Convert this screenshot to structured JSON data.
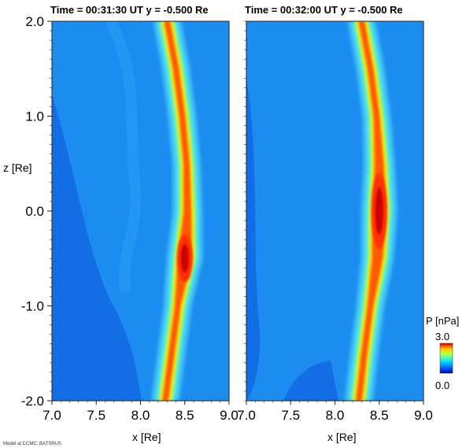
{
  "chart_data": [
    {
      "type": "heatmap",
      "title": "Time = 00:31:30 UT  y = -0.500 Re",
      "xlabel": "x [Re]",
      "ylabel": "z [Re]",
      "xlim": [
        7.0,
        9.0
      ],
      "ylim": [
        -2.0,
        2.0
      ],
      "x_ticks": [
        "7.0",
        "7.5",
        "8.0",
        "8.5",
        "9.0"
      ],
      "y_ticks": [
        "2.0",
        "1.0",
        "0.0",
        "-1.0",
        "-2.0"
      ],
      "ridge": {
        "z": [
          2.0,
          1.5,
          1.0,
          0.5,
          0.0,
          -0.5,
          -1.0,
          -1.5,
          -2.0
        ],
        "x": [
          8.3,
          8.4,
          8.47,
          8.52,
          8.53,
          8.5,
          8.42,
          8.35,
          8.28
        ],
        "peak_pressure": [
          2.4,
          2.5,
          2.5,
          2.5,
          2.6,
          3.0,
          2.5,
          2.4,
          2.3
        ]
      }
    },
    {
      "type": "heatmap",
      "title": "Time = 00:32:00 UT  y = -0.500 Re",
      "xlabel": "x [Re]",
      "xlim": [
        7.0,
        9.0
      ],
      "ylim": [
        -2.0,
        2.0
      ],
      "x_ticks": [
        "7.0",
        "7.5",
        "8.0",
        "8.5",
        "9.0"
      ],
      "ridge": {
        "z": [
          2.0,
          1.5,
          1.0,
          0.5,
          0.0,
          -0.5,
          -1.0,
          -1.5,
          -2.0
        ],
        "x": [
          8.3,
          8.4,
          8.47,
          8.5,
          8.5,
          8.48,
          8.4,
          8.33,
          8.27
        ],
        "peak_pressure": [
          2.4,
          2.5,
          2.5,
          2.7,
          3.0,
          2.8,
          2.5,
          2.4,
          2.3
        ]
      }
    }
  ],
  "colorbar": {
    "label": "P [nPa]",
    "max_label": "3.0",
    "min_label": "0.0",
    "range": [
      0.0,
      3.0
    ],
    "colors": [
      "#00008f",
      "#0050ff",
      "#00c8ff",
      "#40ffc0",
      "#c0ff40",
      "#ffd000",
      "#ff6000",
      "#c00000"
    ]
  },
  "credit": "Model at CCMC: BATSRUS"
}
